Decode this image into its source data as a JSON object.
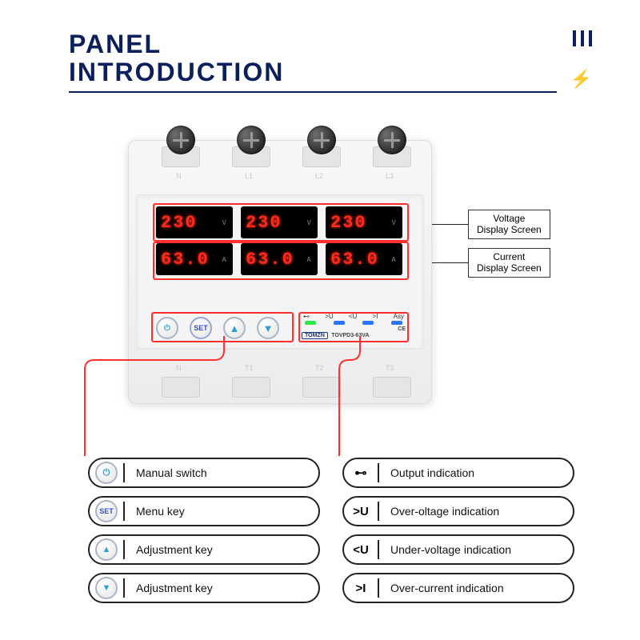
{
  "title": {
    "line1": "PANEL",
    "line2": "INTRODUCTION"
  },
  "colors": {
    "brand": "#0a1f5c",
    "highlight": "#ff3030",
    "segment": "#ff2a1a",
    "led_green": "#2ee84a",
    "led_blue": "#2a74ff",
    "btn_accent": "#2a9fd6",
    "btn_set": "#2a4bd6"
  },
  "device": {
    "brand": "TOMZN",
    "model": "TOVPD3-63VA",
    "cert": "CE",
    "phases": [
      "L1",
      "L2",
      "L3"
    ],
    "voltage_unit": "V",
    "current_unit": "A",
    "readings": {
      "volts": [
        "230",
        "230",
        "230"
      ],
      "amps": [
        "63.0",
        "63.0",
        "63.0"
      ]
    },
    "buttons": {
      "power_glyph": "⏻",
      "set_label": "SET",
      "up_glyph": "▲",
      "down_glyph": "▼"
    },
    "indicator_symbols": [
      "⊷",
      ">U",
      "<U",
      ">I",
      "Asy"
    ],
    "led_colors": [
      "#2ee84a",
      "#2a74ff",
      "#2a74ff",
      "#2a74ff"
    ],
    "terminals_top": [
      "N",
      "L1",
      "L2",
      "L3"
    ],
    "terminals_bottom": [
      "N",
      "T1",
      "T2",
      "T3"
    ]
  },
  "callouts": {
    "voltage": {
      "line1": "Voltage",
      "line2": "Display Screen"
    },
    "current": {
      "line1": "Current",
      "line2": "Display Screen"
    }
  },
  "legend_left": [
    {
      "icon_type": "circle",
      "glyph": "⏻",
      "color": "#2a9fd6",
      "label": "Manual switch"
    },
    {
      "icon_type": "circle",
      "glyph": "SET",
      "color": "#2a4bd6",
      "label": "Menu key"
    },
    {
      "icon_type": "circle",
      "glyph": "▲",
      "color": "#2a9fd6",
      "label": "Adjustment key"
    },
    {
      "icon_type": "circle",
      "glyph": "▼",
      "color": "#2a9fd6",
      "label": "Adjustment key"
    }
  ],
  "legend_right": [
    {
      "icon_type": "text",
      "glyph": "⊷",
      "label": "Output indication"
    },
    {
      "icon_type": "text",
      "glyph": ">U",
      "label": "Over-oltage indication"
    },
    {
      "icon_type": "text",
      "glyph": "<U",
      "label": "Under-voltage indication"
    },
    {
      "icon_type": "text",
      "glyph": ">I",
      "label": "Over-current indication"
    }
  ]
}
